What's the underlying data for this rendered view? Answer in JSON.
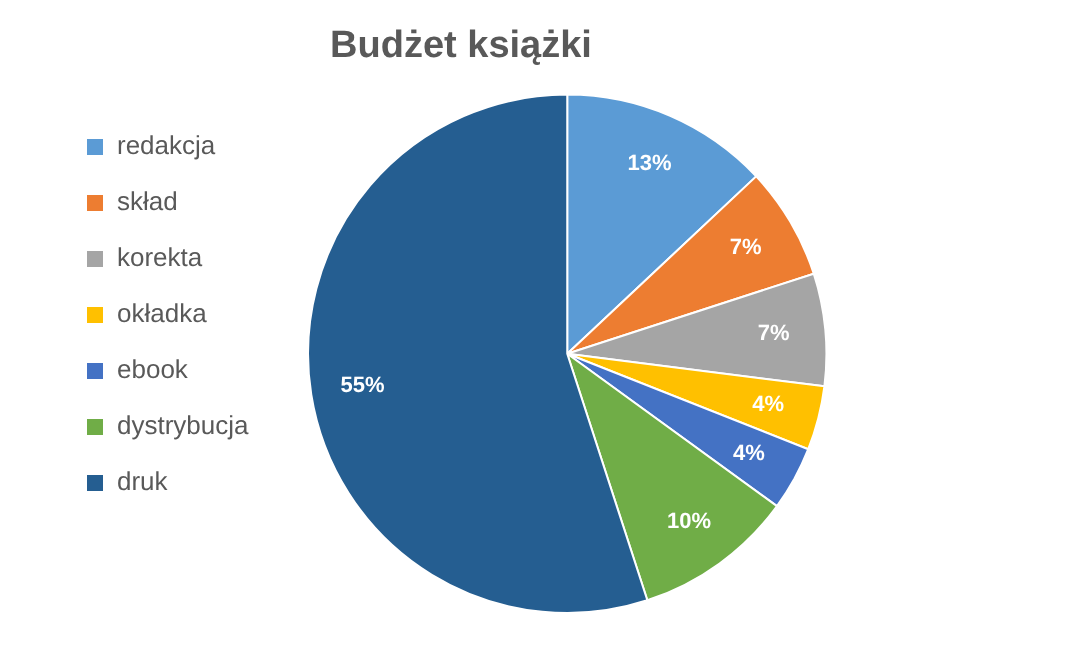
{
  "chart_data": {
    "type": "pie",
    "title": "Budżet książki",
    "categories": [
      "redakcja",
      "skład",
      "korekta",
      "okładka",
      "ebook",
      "dystrybucja",
      "druk"
    ],
    "values": [
      13,
      7,
      7,
      4,
      4,
      10,
      55
    ],
    "colors": [
      "#5b9bd5",
      "#ed7d31",
      "#a5a5a5",
      "#ffc000",
      "#4472c4",
      "#70ad47",
      "#255e91"
    ],
    "value_labels": [
      "13%",
      "7%",
      "7%",
      "4%",
      "4%",
      "10%",
      "55%"
    ],
    "legend": "left"
  }
}
